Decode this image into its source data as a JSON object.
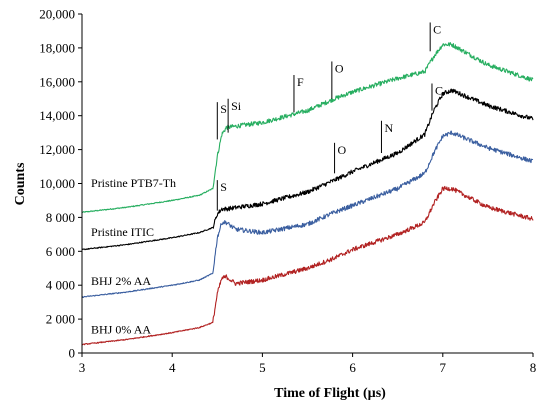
{
  "chart_data": {
    "type": "line",
    "title": "",
    "xlabel": "Time of Flight (µs)",
    "ylabel": "Counts",
    "xlim": [
      3,
      8
    ],
    "ylim": [
      0,
      20000
    ],
    "x_ticks": [
      3,
      4,
      5,
      6,
      7,
      8
    ],
    "y_ticks": [
      {
        "value": 0,
        "label": "0"
      },
      {
        "value": 2000,
        "label": "2 000"
      },
      {
        "value": 4000,
        "label": "4 000"
      },
      {
        "value": 6000,
        "label": "6 000"
      },
      {
        "value": 8000,
        "label": "8 000"
      },
      {
        "value": 10000,
        "label": "10,000"
      },
      {
        "value": 12000,
        "label": "12,000"
      },
      {
        "value": 14000,
        "label": "14,000"
      },
      {
        "value": 16000,
        "label": "16,000"
      },
      {
        "value": 18000,
        "label": "18,000"
      },
      {
        "value": 20000,
        "label": "20,000"
      }
    ],
    "grid": false,
    "series": [
      {
        "name": "Pristine PTB7-Th",
        "color": "#27ae60",
        "label_x": 3.1,
        "label_y": 9800,
        "x": [
          3.0,
          3.5,
          4.0,
          4.3,
          4.45,
          4.5,
          4.55,
          4.6,
          5.0,
          5.5,
          5.8,
          6.0,
          6.5,
          6.8,
          6.9,
          7.0,
          7.1,
          7.5,
          8.0
        ],
        "y": [
          8300,
          8600,
          9000,
          9300,
          9700,
          11600,
          12900,
          13300,
          13600,
          14300,
          15000,
          15400,
          16200,
          16600,
          17500,
          18200,
          18200,
          17000,
          16100
        ]
      },
      {
        "name": "Pristine ITIC",
        "color": "#000000",
        "label_x": 3.1,
        "label_y": 6900,
        "x": [
          3.0,
          3.5,
          4.0,
          4.3,
          4.45,
          4.5,
          4.55,
          4.6,
          5.0,
          5.5,
          5.8,
          6.0,
          6.5,
          6.8,
          6.9,
          7.0,
          7.1,
          7.5,
          8.0
        ],
        "y": [
          6100,
          6400,
          6800,
          7100,
          7400,
          8200,
          8500,
          8500,
          8800,
          9500,
          10200,
          10700,
          11800,
          12900,
          14300,
          15300,
          15500,
          14600,
          13800
        ]
      },
      {
        "name": "BHJ 2% AA",
        "color": "#3b5fa0",
        "label_x": 3.1,
        "label_y": 4000,
        "x": [
          3.0,
          3.5,
          4.0,
          4.3,
          4.45,
          4.5,
          4.55,
          4.6,
          4.7,
          5.0,
          5.5,
          5.8,
          6.0,
          6.5,
          6.8,
          6.9,
          7.0,
          7.1,
          7.5,
          8.0
        ],
        "y": [
          3300,
          3600,
          4000,
          4300,
          4700,
          6800,
          7700,
          7700,
          7300,
          7100,
          7600,
          8300,
          8700,
          9700,
          10600,
          11800,
          12800,
          13000,
          12100,
          11300
        ]
      },
      {
        "name": "BHJ 0% AA",
        "color": "#b22222",
        "label_x": 3.1,
        "label_y": 1150,
        "x": [
          3.0,
          3.5,
          4.0,
          4.3,
          4.45,
          4.5,
          4.55,
          4.6,
          4.7,
          5.0,
          5.5,
          5.8,
          6.0,
          6.5,
          6.8,
          6.9,
          7.0,
          7.1,
          7.5,
          8.0
        ],
        "y": [
          500,
          800,
          1200,
          1500,
          1800,
          3500,
          4400,
          4500,
          4100,
          4300,
          5000,
          5600,
          6100,
          7000,
          7700,
          8800,
          9700,
          9700,
          8600,
          7900
        ]
      }
    ],
    "annotations": [
      {
        "text": "S",
        "x": 4.5,
        "y_bottom": 12600,
        "y_top": 14800
      },
      {
        "text": "Si",
        "x": 4.62,
        "y_bottom": 13000,
        "y_top": 15000
      },
      {
        "text": "F",
        "x": 5.35,
        "y_bottom": 14200,
        "y_top": 16400
      },
      {
        "text": "O",
        "x": 5.77,
        "y_bottom": 15000,
        "y_top": 17200
      },
      {
        "text": "C",
        "x": 6.86,
        "y_bottom": 17800,
        "y_top": 19500
      },
      {
        "text": "S",
        "x": 4.5,
        "y_bottom": 8400,
        "y_top": 10200
      },
      {
        "text": "O",
        "x": 5.8,
        "y_bottom": 10600,
        "y_top": 12400
      },
      {
        "text": "N",
        "x": 6.32,
        "y_bottom": 11800,
        "y_top": 13700
      },
      {
        "text": "C",
        "x": 6.88,
        "y_bottom": 14300,
        "y_top": 15900
      }
    ]
  }
}
